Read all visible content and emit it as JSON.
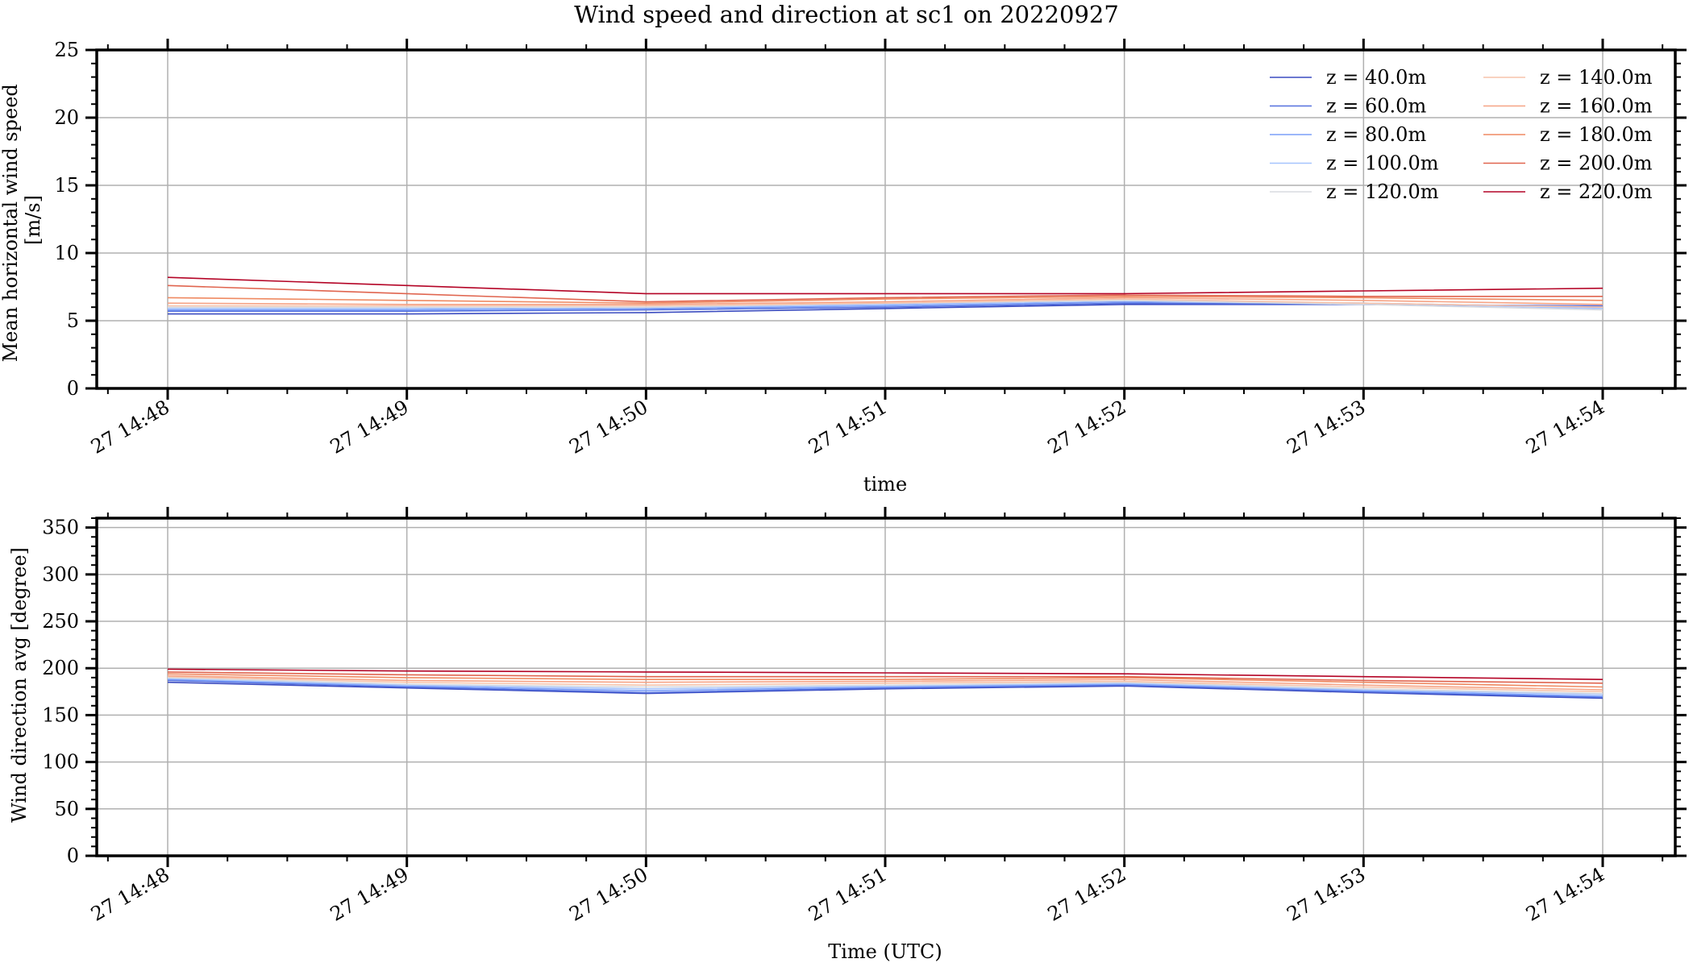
{
  "title": "Wind speed and direction at sc1 on 20220927",
  "legend": {
    "placement": "upper-right (top panel)",
    "columns": 2,
    "labels": [
      "z = 40.0m",
      "z = 60.0m",
      "z = 80.0m",
      "z = 100.0m",
      "z = 120.0m",
      "z = 140.0m",
      "z = 160.0m",
      "z = 180.0m",
      "z = 200.0m",
      "z = 220.0m"
    ]
  },
  "colors": {
    "series": [
      "#3b4cc0",
      "#5470de",
      "#7b9ff9",
      "#a6c4fe",
      "#d9dce1",
      "#f7c4ab",
      "#f6a385",
      "#ef8a62",
      "#e0654f",
      "#b40426"
    ],
    "grid": "#b0b0b0",
    "axis": "#000000"
  },
  "chart_data": [
    {
      "type": "line",
      "title": "Wind speed and direction at sc1 on 20220927",
      "xlabel": "time",
      "ylabel": "Mean horizontal wind speed [m/s]",
      "ylabel_lines": [
        "Mean horizontal wind speed",
        "[m/s]"
      ],
      "x": [
        "27 14:48",
        "27 14:49",
        "27 14:50",
        "27 14:51",
        "27 14:52",
        "27 14:53",
        "27 14:54"
      ],
      "xlim": [
        "27 14:47:45",
        "27 14:54:15"
      ],
      "ylim": [
        0,
        25
      ],
      "yticks": [
        0,
        5,
        10,
        15,
        20,
        25
      ],
      "grid": true,
      "series": [
        {
          "name": "z = 40.0m",
          "values": [
            5.5,
            5.5,
            5.6,
            5.9,
            6.2,
            6.2,
            6.0
          ]
        },
        {
          "name": "z = 60.0m",
          "values": [
            5.7,
            5.7,
            5.8,
            6.0,
            6.3,
            6.2,
            6.1
          ]
        },
        {
          "name": "z = 80.0m",
          "values": [
            5.8,
            5.8,
            5.9,
            6.1,
            6.4,
            6.3,
            6.0
          ]
        },
        {
          "name": "z = 100.0m",
          "values": [
            5.9,
            5.9,
            6.0,
            6.2,
            6.5,
            6.3,
            5.9
          ]
        },
        {
          "name": "z = 120.0m",
          "values": [
            6.0,
            6.0,
            6.0,
            6.3,
            6.5,
            6.2,
            5.8
          ]
        },
        {
          "name": "z = 140.0m",
          "values": [
            6.1,
            6.1,
            6.1,
            6.3,
            6.6,
            6.3,
            6.0
          ]
        },
        {
          "name": "z = 160.0m",
          "values": [
            6.3,
            6.2,
            6.2,
            6.4,
            6.7,
            6.5,
            6.2
          ]
        },
        {
          "name": "z = 180.0m",
          "values": [
            6.7,
            6.5,
            6.3,
            6.6,
            6.8,
            6.7,
            6.5
          ]
        },
        {
          "name": "z = 200.0m",
          "values": [
            7.6,
            7.0,
            6.4,
            6.7,
            6.9,
            6.8,
            6.8
          ]
        },
        {
          "name": "z = 220.0m",
          "values": [
            8.2,
            7.6,
            7.0,
            7.0,
            7.0,
            7.2,
            7.4
          ]
        }
      ]
    },
    {
      "type": "line",
      "xlabel": "Time (UTC)",
      "ylabel": "Wind direction avg [degree]",
      "x": [
        "27 14:48",
        "27 14:49",
        "27 14:50",
        "27 14:51",
        "27 14:52",
        "27 14:53",
        "27 14:54"
      ],
      "xlim": [
        "27 14:47:45",
        "27 14:54:15"
      ],
      "ylim": [
        0,
        360
      ],
      "yticks": [
        0,
        50,
        100,
        150,
        200,
        250,
        300,
        350
      ],
      "grid": true,
      "series": [
        {
          "name": "z = 40.0m",
          "values": [
            185,
            179,
            173,
            178,
            181,
            174,
            168
          ]
        },
        {
          "name": "z = 60.0m",
          "values": [
            187,
            180,
            174,
            179,
            182,
            175,
            169
          ]
        },
        {
          "name": "z = 80.0m",
          "values": [
            188,
            181,
            176,
            180,
            183,
            176,
            170
          ]
        },
        {
          "name": "z = 100.0m",
          "values": [
            189,
            182,
            178,
            181,
            184,
            177,
            172
          ]
        },
        {
          "name": "z = 120.0m",
          "values": [
            190,
            183,
            180,
            182,
            185,
            178,
            173
          ]
        },
        {
          "name": "z = 140.0m",
          "values": [
            191,
            185,
            182,
            184,
            186,
            180,
            175
          ]
        },
        {
          "name": "z = 160.0m",
          "values": [
            192,
            187,
            185,
            186,
            188,
            182,
            177
          ]
        },
        {
          "name": "z = 180.0m",
          "values": [
            194,
            190,
            188,
            188,
            190,
            185,
            180
          ]
        },
        {
          "name": "z = 200.0m",
          "values": [
            196,
            193,
            191,
            191,
            191,
            187,
            184
          ]
        },
        {
          "name": "z = 220.0m",
          "values": [
            199,
            197,
            196,
            195,
            194,
            191,
            188
          ]
        }
      ]
    }
  ]
}
